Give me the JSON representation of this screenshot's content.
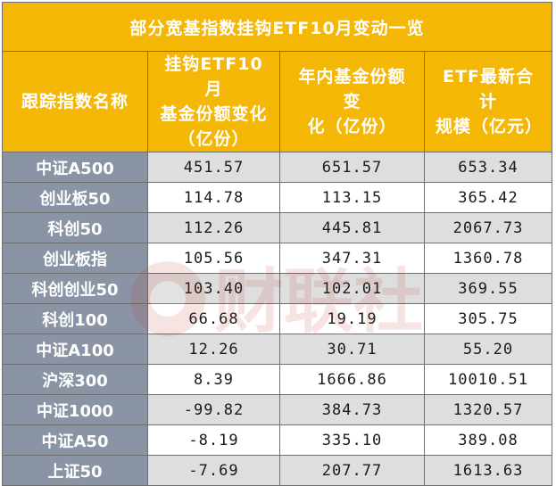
{
  "title": "部分宽基指数挂钩ETF10月变动一览",
  "columns": [
    {
      "label_lines": [
        "跟踪指数名称"
      ]
    },
    {
      "label_lines": [
        "挂钩ETF10月",
        "基金份额变化",
        "（亿份）"
      ]
    },
    {
      "label_lines": [
        "年内基金份额变",
        "化（亿份）"
      ]
    },
    {
      "label_lines": [
        "ETF最新合计",
        "规模（亿元）"
      ]
    }
  ],
  "rows": [
    {
      "name": "中证A500",
      "oct_change": "451.57",
      "ytd_change": "651.57",
      "scale": "653.34"
    },
    {
      "name": "创业板50",
      "oct_change": "114.78",
      "ytd_change": "113.15",
      "scale": "365.42"
    },
    {
      "name": "科创50",
      "oct_change": "112.26",
      "ytd_change": "445.81",
      "scale": "2067.73"
    },
    {
      "name": "创业板指",
      "oct_change": "105.56",
      "ytd_change": "347.31",
      "scale": "1360.78"
    },
    {
      "name": "科创创业50",
      "oct_change": "103.40",
      "ytd_change": "102.01",
      "scale": "369.55"
    },
    {
      "name": "科创100",
      "oct_change": "66.68",
      "ytd_change": "19.19",
      "scale": "305.75"
    },
    {
      "name": "中证A100",
      "oct_change": "12.26",
      "ytd_change": "30.71",
      "scale": "55.20"
    },
    {
      "name": "沪深300",
      "oct_change": "8.39",
      "ytd_change": "1666.86",
      "scale": "10010.51"
    },
    {
      "name": "中证1000",
      "oct_change": "-99.82",
      "ytd_change": "384.73",
      "scale": "1320.57"
    },
    {
      "name": "中证A50",
      "oct_change": "-8.19",
      "ytd_change": "335.10",
      "scale": "389.08"
    },
    {
      "name": "上证50",
      "oct_change": "-7.69",
      "ytd_change": "207.77",
      "scale": "1613.63"
    }
  ],
  "colors": {
    "header_bg": "#f5b705",
    "name_col_bg": "#8a94a5",
    "stripe_bg": "#dedede"
  },
  "watermark_text": "财联社"
}
